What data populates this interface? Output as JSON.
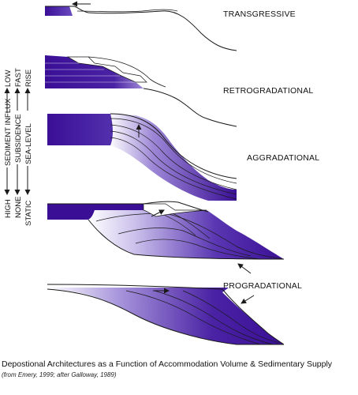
{
  "diagram": {
    "panels": {
      "transgressive": "TRANSGRESSIVE",
      "retrogradational": "RETROGRADATIONAL",
      "aggradational": "AGGRADATIONAL",
      "progradational": "PROGRADATIONAL"
    },
    "axis": {
      "sediment": {
        "low": "LOW",
        "title": "SEDIMENT INFLUX",
        "high": "HIGH"
      },
      "subsidence": {
        "fast": "FAST",
        "title": "SUBSIDENCE",
        "none": "NONE"
      },
      "sealevel": {
        "rise": "RISE",
        "title": "SEA-LEVEL",
        "static": "STATIC"
      }
    },
    "caption": "Depostional Architectures as a Function of Accommodation Volume & Sedimentary Supply",
    "source": "(from Emery, 1999; after Galloway, 1989)",
    "colors": {
      "fill_dark": "#3a0f96",
      "fill_light": "#ffffff",
      "line": "#1a1a1a"
    }
  }
}
